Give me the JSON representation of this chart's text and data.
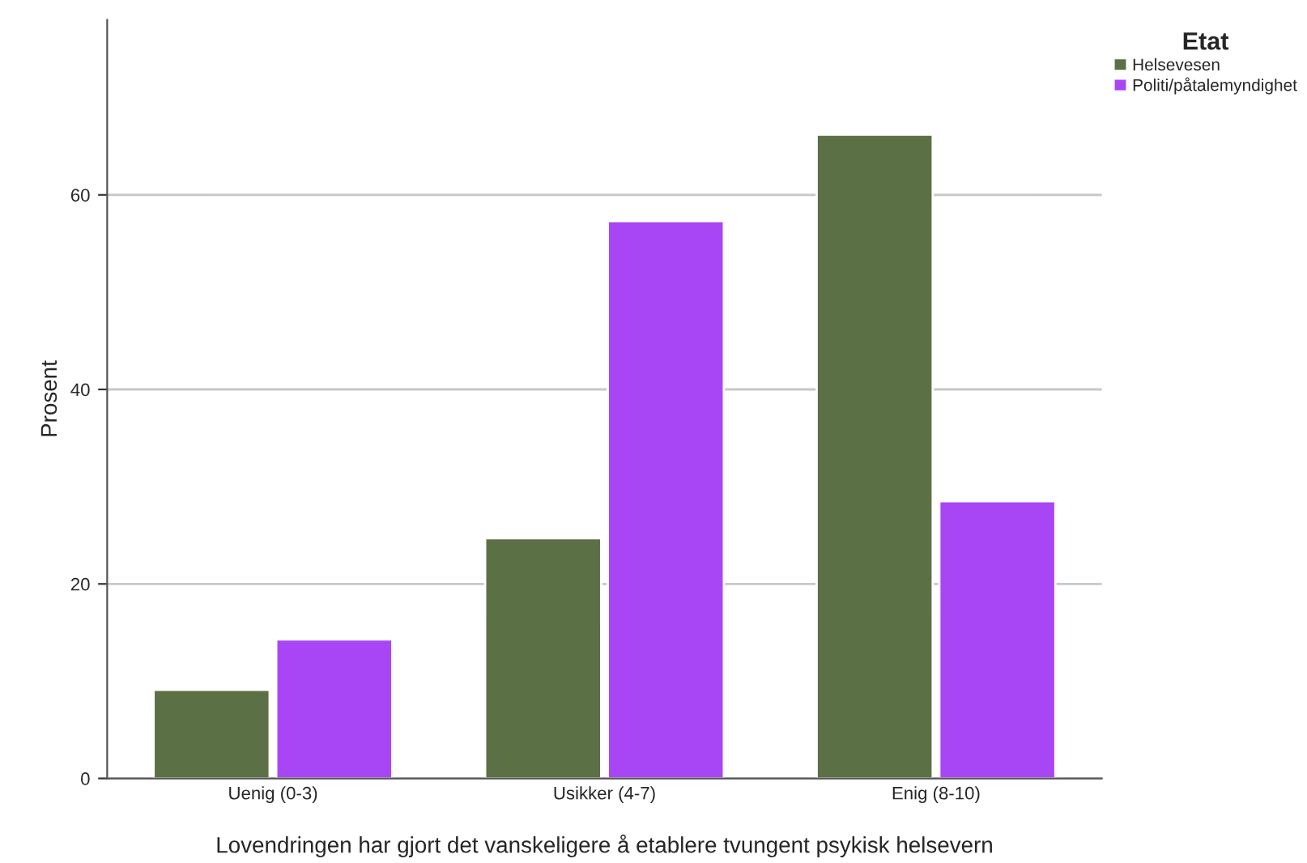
{
  "chart_data": {
    "type": "bar",
    "xlabel": "Lovendringen har gjort det vanskeligere å etablere tvungent psykisk helsevern",
    "ylabel": "Prosent",
    "legend_title": "Etat",
    "categories": [
      "Uenig (0-3)",
      "Usikker (4-7)",
      "Enig (8-10)"
    ],
    "series": [
      {
        "name": "Helsevesen",
        "color": "#5c7045",
        "values": [
          9.1,
          24.7,
          66.2
        ]
      },
      {
        "name": "Politi/påtalemyndighet",
        "color": "#a846f5",
        "values": [
          14.3,
          57.3,
          28.5
        ]
      }
    ],
    "ylim": [
      0,
      78
    ],
    "yticks": [
      0,
      20,
      40,
      60
    ],
    "grid": "y",
    "legend": "top right"
  }
}
